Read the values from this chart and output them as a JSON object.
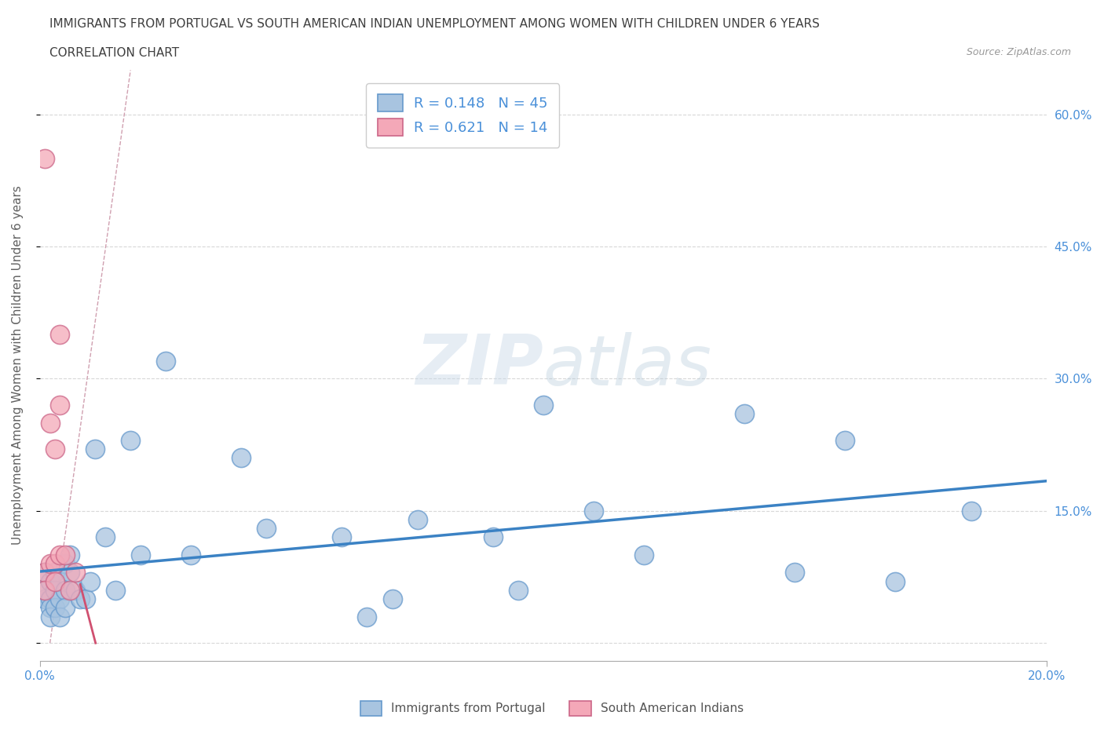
{
  "title_line1": "IMMIGRANTS FROM PORTUGAL VS SOUTH AMERICAN INDIAN UNEMPLOYMENT AMONG WOMEN WITH CHILDREN UNDER 6 YEARS",
  "title_line2": "CORRELATION CHART",
  "source": "Source: ZipAtlas.com",
  "ylabel": "Unemployment Among Women with Children Under 6 years",
  "watermark": "ZIPatlas",
  "R_blue": 0.148,
  "N_blue": 45,
  "R_pink": 0.621,
  "N_pink": 14,
  "blue_color": "#a8c4e0",
  "pink_color": "#f4a8b8",
  "blue_line_color": "#3b82c4",
  "pink_line_color": "#d05070",
  "blue_scatter_edge": "#6699cc",
  "pink_scatter_edge": "#cc6688",
  "dashed_line_color": "#d0a0b0",
  "xlim": [
    0.0,
    0.2
  ],
  "ylim": [
    -0.02,
    0.65
  ],
  "xticks": [
    0.0,
    0.2
  ],
  "xtick_labels": [
    "0.0%",
    "20.0%"
  ],
  "yticks": [
    0.0,
    0.15,
    0.3,
    0.45,
    0.6
  ],
  "ytick_labels": [
    "",
    "15.0%",
    "30.0%",
    "45.0%",
    "60.0%"
  ],
  "blue_x": [
    0.001,
    0.001,
    0.001,
    0.002,
    0.002,
    0.002,
    0.002,
    0.003,
    0.003,
    0.003,
    0.004,
    0.004,
    0.004,
    0.005,
    0.005,
    0.005,
    0.006,
    0.006,
    0.007,
    0.008,
    0.009,
    0.01,
    0.011,
    0.013,
    0.015,
    0.018,
    0.02,
    0.025,
    0.03,
    0.04,
    0.045,
    0.06,
    0.065,
    0.07,
    0.075,
    0.09,
    0.095,
    0.1,
    0.11,
    0.12,
    0.14,
    0.15,
    0.16,
    0.17,
    0.185
  ],
  "blue_y": [
    0.08,
    0.05,
    0.06,
    0.07,
    0.05,
    0.04,
    0.03,
    0.08,
    0.06,
    0.04,
    0.05,
    0.07,
    0.03,
    0.09,
    0.06,
    0.04,
    0.08,
    0.1,
    0.06,
    0.05,
    0.05,
    0.07,
    0.22,
    0.12,
    0.06,
    0.23,
    0.1,
    0.32,
    0.1,
    0.21,
    0.13,
    0.12,
    0.03,
    0.05,
    0.14,
    0.12,
    0.06,
    0.27,
    0.15,
    0.1,
    0.26,
    0.08,
    0.23,
    0.07,
    0.15
  ],
  "pink_x": [
    0.001,
    0.001,
    0.001,
    0.002,
    0.002,
    0.003,
    0.003,
    0.003,
    0.004,
    0.004,
    0.004,
    0.005,
    0.006,
    0.007
  ],
  "pink_y": [
    0.55,
    0.08,
    0.06,
    0.25,
    0.09,
    0.22,
    0.09,
    0.07,
    0.1,
    0.35,
    0.27,
    0.1,
    0.06,
    0.08
  ],
  "legend_label_blue": "Immigrants from Portugal",
  "legend_label_pink": "South American Indians",
  "bg_color": "#ffffff",
  "grid_color": "#d8d8d8",
  "title_color": "#404040",
  "axis_label_color": "#606060",
  "tick_label_color": "#4a90d9"
}
